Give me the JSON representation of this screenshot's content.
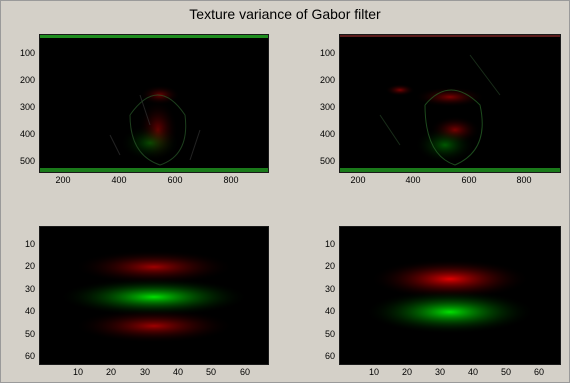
{
  "window": {
    "title": "Texture variance of Gabor filter",
    "background": "#d4d0c8"
  },
  "chart_data": [
    {
      "type": "heatmap",
      "name": "texture-variance-left",
      "x_ticks": [
        "200",
        "400",
        "600",
        "800"
      ],
      "y_ticks": [
        "100",
        "200",
        "300",
        "400",
        "500"
      ],
      "xlim": [
        1,
        800
      ],
      "ylim": [
        1,
        540
      ],
      "colormap": [
        "#000000",
        "#ff0000",
        "#00ff00"
      ]
    },
    {
      "type": "heatmap",
      "name": "texture-variance-right",
      "x_ticks": [
        "200",
        "400",
        "600",
        "800"
      ],
      "y_ticks": [
        "100",
        "200",
        "300",
        "400",
        "500"
      ],
      "xlim": [
        1,
        800
      ],
      "ylim": [
        1,
        540
      ],
      "colormap": [
        "#000000",
        "#ff0000",
        "#00ff00"
      ]
    },
    {
      "type": "heatmap",
      "name": "gabor-kernel-odd",
      "x_ticks": [
        "10",
        "20",
        "30",
        "40",
        "50",
        "60"
      ],
      "y_ticks": [
        "10",
        "20",
        "30",
        "40",
        "50",
        "60"
      ],
      "xlim": [
        1,
        64
      ],
      "ylim": [
        1,
        64
      ],
      "bands": [
        {
          "color": "#ff0000",
          "y_center": 18,
          "intensity": 0.55
        },
        {
          "color": "#00ff00",
          "y_center": 32,
          "intensity": 0.85
        },
        {
          "color": "#ff0000",
          "y_center": 45,
          "intensity": 0.55
        }
      ]
    },
    {
      "type": "heatmap",
      "name": "gabor-kernel-even",
      "x_ticks": [
        "10",
        "20",
        "30",
        "40",
        "50",
        "60"
      ],
      "y_ticks": [
        "10",
        "20",
        "30",
        "40",
        "50",
        "60"
      ],
      "xlim": [
        1,
        64
      ],
      "ylim": [
        1,
        64
      ],
      "bands": [
        {
          "color": "#ff0000",
          "y_center": 25,
          "intensity": 0.85
        },
        {
          "color": "#00ff00",
          "y_center": 38,
          "intensity": 0.85
        }
      ]
    }
  ]
}
